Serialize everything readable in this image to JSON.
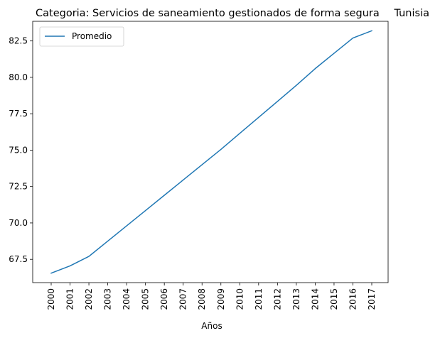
{
  "chart_data": {
    "type": "line",
    "title": "Categoria: Servicios de saneamiento gestionados de forma segura",
    "subtitle": "Tunisia",
    "xlabel": "Años",
    "ylabel": "",
    "x": [
      "2000",
      "2001",
      "2002",
      "2003",
      "2004",
      "2005",
      "2006",
      "2007",
      "2008",
      "2009",
      "2010",
      "2011",
      "2012",
      "2013",
      "2014",
      "2015",
      "2016",
      "2017"
    ],
    "series": [
      {
        "name": "Promedio",
        "color": "#1f77b4",
        "values": [
          66.55,
          67.05,
          67.7,
          68.75,
          69.8,
          70.85,
          71.9,
          72.95,
          74.0,
          75.05,
          76.15,
          77.25,
          78.35,
          79.45,
          80.6,
          81.65,
          82.7,
          83.2
        ]
      }
    ],
    "ylim": [
      65.9,
      83.85
    ],
    "yticks": [
      67.5,
      70.0,
      72.5,
      75.0,
      77.5,
      80.0,
      82.5
    ],
    "ytick_labels": [
      "67.5",
      "70.0",
      "72.5",
      "75.0",
      "77.5",
      "80.0",
      "82.5"
    ],
    "legend_position": "top-left",
    "grid": false
  }
}
